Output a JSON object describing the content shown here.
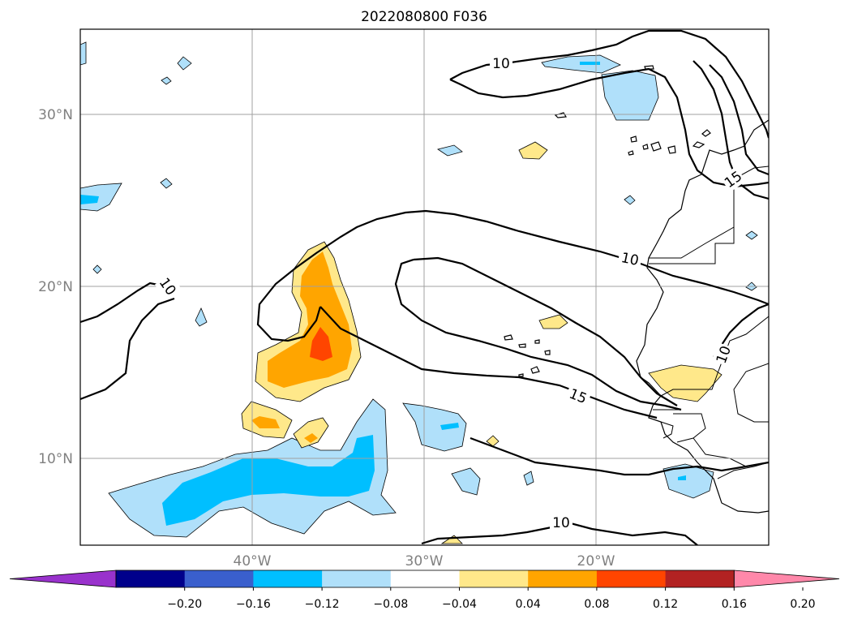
{
  "title": "2022080800 F036",
  "lat_labels": [
    "30°N",
    "20°N",
    "10°N"
  ],
  "lon_labels": [
    "40°W",
    "30°W",
    "20°W"
  ],
  "contour_labels": [
    "10",
    "10",
    "10",
    "10",
    "15",
    "15",
    "10"
  ],
  "colorbar": {
    "ticks": [
      "−0.20",
      "−0.16",
      "−0.12",
      "−0.08",
      "−0.04",
      "0.04",
      "0.08",
      "0.12",
      "0.16",
      "0.20"
    ],
    "colors": [
      "#9932cc",
      "#00008b",
      "#3a5fcd",
      "#00bfff",
      "#b0e0fa",
      "#ffffff",
      "#ffe88a",
      "#ffa500",
      "#ff4500",
      "#b22222",
      "#ff88aa"
    ],
    "extend": "both"
  }
}
